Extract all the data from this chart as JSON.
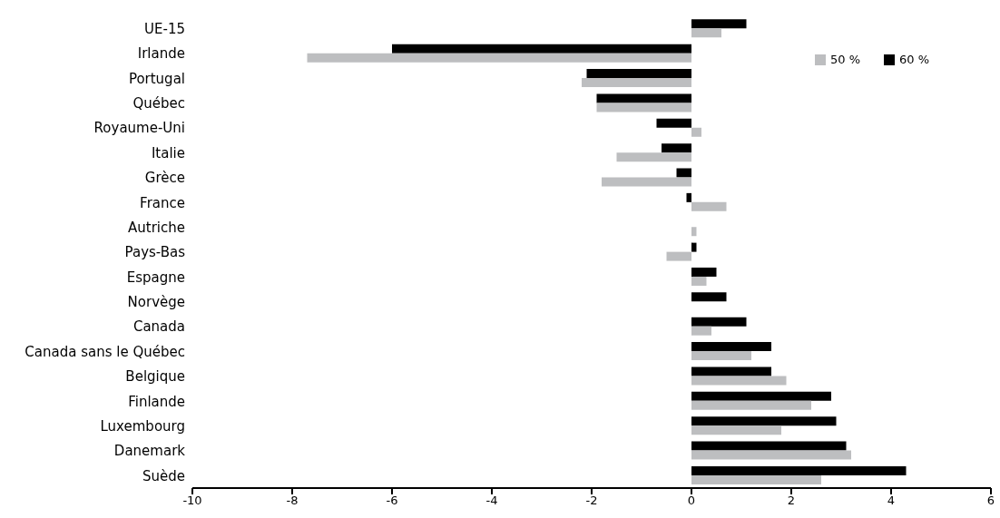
{
  "chart_data": {
    "type": "bar",
    "orientation": "horizontal",
    "categories": [
      "UE-15",
      "Irlande",
      "Portugal",
      "Québec",
      "Royaume-Uni",
      "Italie",
      "Grèce",
      "France",
      "Autriche",
      "Pays-Bas",
      "Espagne",
      "Norvège",
      "Canada",
      "Canada sans le Québec",
      "Belgique",
      "Finlande",
      "Luxembourg",
      "Danemark",
      "Suède"
    ],
    "series": [
      {
        "name": "50 %",
        "color": "#bdbec0",
        "values": [
          0.6,
          -7.7,
          -2.2,
          -1.9,
          0.2,
          -1.5,
          -1.8,
          0.7,
          0.1,
          -0.5,
          0.3,
          0,
          0.4,
          1.2,
          1.9,
          2.4,
          1.8,
          3.2,
          2.6
        ]
      },
      {
        "name": "60 %",
        "color": "#000000",
        "values": [
          1.1,
          -6.0,
          -2.1,
          -1.9,
          -0.7,
          -0.6,
          -0.3,
          -0.1,
          0,
          0.1,
          0.5,
          0.7,
          1.1,
          1.6,
          1.6,
          2.8,
          2.9,
          3.1,
          4.3
        ]
      }
    ],
    "xlim": [
      -10,
      6
    ],
    "xticks": [
      -10,
      -8,
      -6,
      -4,
      -2,
      0,
      2,
      4,
      6
    ],
    "grid": false,
    "legend": "top right"
  }
}
